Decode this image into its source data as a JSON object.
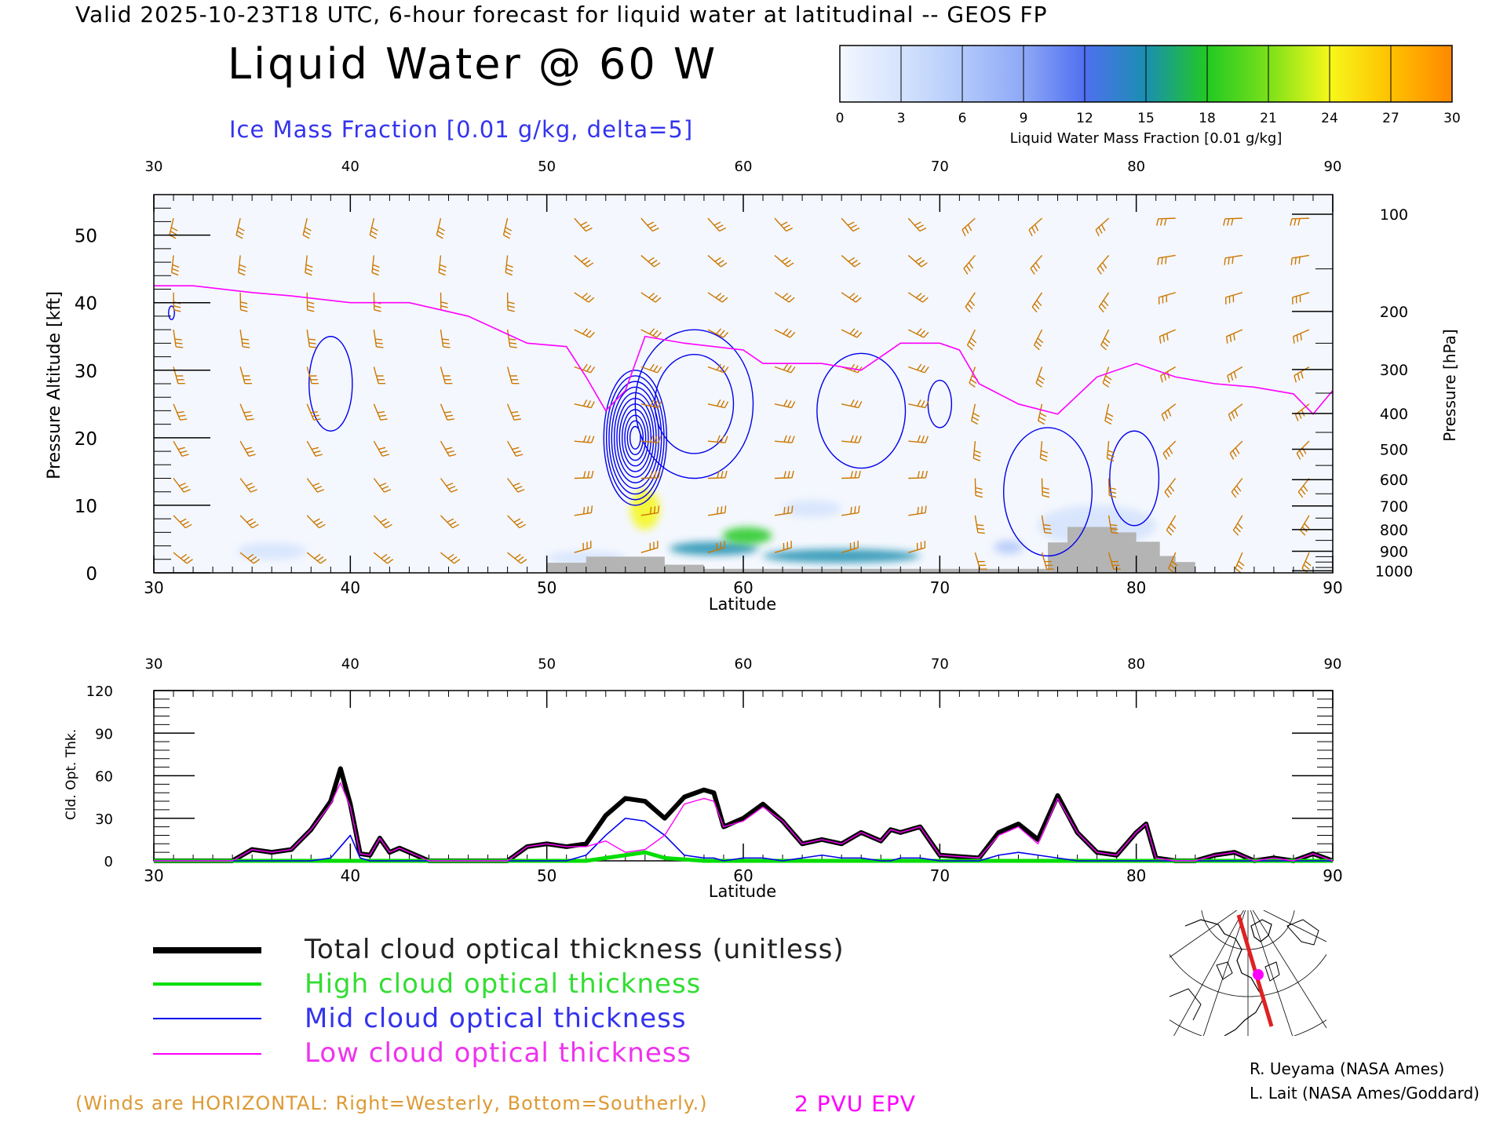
{
  "header": {
    "valid_line": "Valid 2025-10-23T18 UTC, 6-hour forecast for liquid water at latitudinal -- GEOS FP",
    "title": "Liquid Water @ 60 W",
    "subtitle": "Ice Mass Fraction [0.01 g/kg, delta=5]"
  },
  "colorbar": {
    "title": "Liquid Water Mass Fraction [0.01 g/kg]",
    "ticks": [
      "0",
      "3",
      "6",
      "9",
      "12",
      "15",
      "18",
      "21",
      "24",
      "27",
      "30"
    ],
    "colors": [
      "#f3f7ff",
      "#d4e3fd",
      "#b2c9fb",
      "#8ea8f6",
      "#4f6ff0",
      "#1a8fb0",
      "#22c922",
      "#7ae01a",
      "#f6f81a",
      "#ffc000",
      "#ff8800",
      "#ff4400"
    ]
  },
  "chart_data": [
    {
      "type": "heatmap",
      "name": "latitude-pressure cross-section",
      "xlabel": "Latitude",
      "ylabel": "Pressure Altitude [kft]",
      "y2label": "Pressure [hPa]",
      "xlim": [
        30,
        90
      ],
      "ylim": [
        0,
        56
      ],
      "x_ticks": [
        "30",
        "40",
        "50",
        "60",
        "70",
        "80",
        "90"
      ],
      "y_ticks": [
        "0",
        "10",
        "20",
        "30",
        "40",
        "50"
      ],
      "pressure_ticks": [
        {
          "label": "100",
          "kft": 53.1
        },
        {
          "label": "200",
          "kft": 38.7
        },
        {
          "label": "300",
          "kft": 30.1
        },
        {
          "label": "400",
          "kft": 23.6
        },
        {
          "label": "500",
          "kft": 18.3
        },
        {
          "label": "600",
          "kft": 13.8
        },
        {
          "label": "700",
          "kft": 9.9
        },
        {
          "label": "800",
          "kft": 6.4
        },
        {
          "label": "900",
          "kft": 3.2
        },
        {
          "label": "1000",
          "kft": 0.3
        }
      ],
      "epv_2pvu_kft": [
        [
          30,
          42.5
        ],
        [
          32,
          42.5
        ],
        [
          35,
          41.5
        ],
        [
          37,
          41
        ],
        [
          40,
          40
        ],
        [
          43,
          40
        ],
        [
          46,
          38
        ],
        [
          49,
          34
        ],
        [
          51,
          33.5
        ],
        [
          52,
          29
        ],
        [
          53,
          24
        ],
        [
          54,
          27
        ],
        [
          55,
          35
        ],
        [
          57,
          34
        ],
        [
          60,
          33
        ],
        [
          61,
          31
        ],
        [
          64,
          31
        ],
        [
          66,
          30
        ],
        [
          68,
          34
        ],
        [
          70,
          34
        ],
        [
          71,
          33
        ],
        [
          72,
          28
        ],
        [
          74,
          25
        ],
        [
          76,
          23.5
        ],
        [
          78,
          29
        ],
        [
          80,
          31
        ],
        [
          82,
          29
        ],
        [
          84,
          28
        ],
        [
          86,
          27.5
        ],
        [
          88,
          26.5
        ],
        [
          89,
          23.5
        ],
        [
          90,
          27
        ]
      ],
      "ice_contours": [
        {
          "lat": 39,
          "kft": 28,
          "d_lat": 2.2,
          "d_kft": 14,
          "levels": 1
        },
        {
          "lat": 54.5,
          "kft": 20,
          "d_lat": 3.2,
          "d_kft": 20,
          "levels": 11
        },
        {
          "lat": 57.5,
          "kft": 25,
          "d_lat": 6,
          "d_kft": 22,
          "levels": 2
        },
        {
          "lat": 66,
          "kft": 24,
          "d_lat": 4.5,
          "d_kft": 17,
          "levels": 1
        },
        {
          "lat": 70,
          "kft": 25,
          "d_lat": 1.2,
          "d_kft": 7,
          "levels": 1
        },
        {
          "lat": 75.5,
          "kft": 12,
          "d_lat": 4.5,
          "d_kft": 19,
          "levels": 1
        },
        {
          "lat": 79.9,
          "kft": 14,
          "d_lat": 2.5,
          "d_kft": 14,
          "levels": 1
        },
        {
          "lat": 30.9,
          "kft": 38.5,
          "d_lat": 0.3,
          "d_kft": 2,
          "levels": 1
        }
      ],
      "liquid_water_patches": [
        {
          "lat": 40,
          "kft": 12,
          "d_lat": 2.5,
          "d_kft": 24,
          "value": 2
        },
        {
          "lat": 36,
          "kft": 3.2,
          "d_lat": 3.5,
          "d_kft": 2.5,
          "value": 3
        },
        {
          "lat": 55,
          "kft": 9.4,
          "d_lat": 1.5,
          "d_kft": 6,
          "value": 24
        },
        {
          "lat": 58.5,
          "kft": 3.6,
          "d_lat": 4.5,
          "d_kft": 2,
          "value": 16
        },
        {
          "lat": 60.2,
          "kft": 5.5,
          "d_lat": 2.5,
          "d_kft": 2.5,
          "value": 18
        },
        {
          "lat": 65,
          "kft": 2.5,
          "d_lat": 8,
          "d_kft": 2,
          "value": 14
        },
        {
          "lat": 63.5,
          "kft": 9.5,
          "d_lat": 3,
          "d_kft": 2.5,
          "value": 4
        },
        {
          "lat": 52,
          "kft": 2.2,
          "d_lat": 4,
          "d_kft": 2,
          "value": 4
        },
        {
          "lat": 78,
          "kft": 7,
          "d_lat": 6,
          "d_kft": 6,
          "value": 4
        },
        {
          "lat": 73.5,
          "kft": 3.8,
          "d_lat": 1.5,
          "d_kft": 2,
          "value": 7
        }
      ],
      "terrain_kft": [
        [
          50,
          0
        ],
        [
          50,
          1.5
        ],
        [
          52,
          1.5
        ],
        [
          52,
          2.4
        ],
        [
          56,
          2.4
        ],
        [
          56,
          1.2
        ],
        [
          58,
          1.2
        ],
        [
          58,
          0.6
        ],
        [
          75.5,
          0.6
        ],
        [
          75.5,
          4.5
        ],
        [
          76.5,
          4.5
        ],
        [
          76.5,
          6.8
        ],
        [
          79,
          6.8
        ],
        [
          79,
          6.0
        ],
        [
          80,
          6.0
        ],
        [
          80,
          4.6
        ],
        [
          81.2,
          4.6
        ],
        [
          81.2,
          2.5
        ],
        [
          82,
          2.5
        ],
        [
          82,
          1.6
        ],
        [
          83,
          1.6
        ],
        [
          83,
          0
        ]
      ]
    },
    {
      "type": "line",
      "name": "cloud optical thickness",
      "xlabel": "Latitude",
      "ylabel": "Cld. Opt. Thk.",
      "xlim": [
        30,
        90
      ],
      "ylim": [
        0,
        120
      ],
      "x_ticks": [
        "30",
        "40",
        "50",
        "60",
        "70",
        "80",
        "90"
      ],
      "y_ticks": [
        "0",
        "30",
        "60",
        "90",
        "120"
      ],
      "x": [
        30,
        32,
        34,
        35,
        36,
        37,
        38,
        39,
        39.5,
        40,
        40.5,
        41,
        41.5,
        42,
        42.5,
        43,
        44,
        45,
        46,
        48,
        49,
        50,
        51,
        52,
        53,
        54,
        55,
        56,
        57,
        58,
        58.5,
        59,
        60,
        61,
        62,
        63,
        64,
        65,
        66,
        67,
        67.5,
        68,
        69,
        70,
        71,
        72,
        73,
        74,
        75,
        76,
        77,
        78,
        79,
        80,
        80.5,
        81,
        82,
        83,
        84,
        85,
        86,
        87,
        88,
        89,
        90
      ],
      "series": [
        {
          "name": "Total cloud optical thickness (unitless)",
          "color": "#000000",
          "values": [
            0,
            0,
            0,
            8,
            6,
            8,
            22,
            42,
            65,
            40,
            5,
            4,
            16,
            6,
            9,
            6,
            0,
            0,
            0,
            0,
            10,
            12,
            10,
            12,
            32,
            44,
            42,
            30,
            45,
            50,
            48,
            24,
            30,
            40,
            28,
            12,
            15,
            12,
            20,
            14,
            22,
            20,
            24,
            4,
            3,
            2,
            20,
            26,
            15,
            46,
            20,
            6,
            4,
            20,
            26,
            2,
            0,
            0,
            4,
            6,
            0,
            2,
            0,
            5,
            0
          ]
        },
        {
          "name": "High cloud optical thickness",
          "color": "#00dd00",
          "values": [
            0,
            0,
            0,
            0,
            0,
            0,
            0,
            0,
            0,
            0,
            0,
            0,
            0,
            0,
            0,
            0,
            0,
            0,
            0,
            0,
            0,
            0,
            0,
            0,
            2,
            4,
            6,
            2,
            1,
            0,
            0,
            0,
            0,
            0,
            0,
            0,
            0,
            0,
            0,
            0,
            0,
            0,
            0,
            0,
            0,
            0,
            0,
            0,
            0,
            0,
            0,
            0,
            0,
            0,
            0,
            0,
            0,
            0,
            0,
            0,
            0,
            0,
            0,
            0,
            0
          ]
        },
        {
          "name": "Mid cloud optical thickness",
          "color": "#0000ee",
          "values": [
            0,
            0,
            0,
            0,
            0,
            0,
            0,
            2,
            10,
            18,
            2,
            0,
            0,
            0,
            0,
            0,
            0,
            0,
            0,
            0,
            0,
            0,
            0,
            4,
            18,
            30,
            28,
            18,
            4,
            2,
            2,
            0,
            2,
            2,
            0,
            2,
            4,
            2,
            2,
            0,
            0,
            2,
            2,
            0,
            0,
            0,
            4,
            6,
            4,
            2,
            0,
            0,
            0,
            0,
            0,
            0,
            0,
            0,
            0,
            0,
            0,
            0,
            0,
            0,
            0
          ]
        },
        {
          "name": "Low cloud optical thickness",
          "color": "#ff00ff",
          "values": [
            0,
            0,
            0,
            8,
            6,
            8,
            22,
            40,
            55,
            38,
            5,
            4,
            16,
            6,
            9,
            6,
            0,
            0,
            0,
            0,
            10,
            12,
            10,
            10,
            14,
            6,
            8,
            18,
            40,
            44,
            42,
            24,
            28,
            38,
            28,
            12,
            15,
            12,
            20,
            14,
            22,
            20,
            24,
            4,
            3,
            2,
            18,
            24,
            12,
            44,
            20,
            6,
            4,
            20,
            26,
            2,
            0,
            0,
            4,
            6,
            0,
            2,
            0,
            5,
            0
          ]
        }
      ]
    }
  ],
  "legend": {
    "items": [
      {
        "label": "Total cloud optical thickness (unitless)",
        "color": "#222222"
      },
      {
        "label": "High cloud optical thickness",
        "color": "#33dd33"
      },
      {
        "label": "Mid cloud optical thickness",
        "color": "#3333ee"
      },
      {
        "label": "Low cloud optical thickness",
        "color": "#ee33ee"
      }
    ]
  },
  "footer": {
    "winds_note": "(Winds are HORIZONTAL: Right=Westerly, Bottom=Southerly.)",
    "epv_label": "2 PVU EPV",
    "credit_1": "R. Ueyama (NASA Ames)",
    "credit_2": "L. Lait (NASA Ames/Goddard)"
  },
  "colors": {
    "wind_barb": "#cc7700",
    "epv": "#ff00ff",
    "ice_contour": "#0000ee",
    "terrain": "#b4b4b4",
    "winds_note": "#dd9933",
    "map_track": "#dd2222"
  }
}
